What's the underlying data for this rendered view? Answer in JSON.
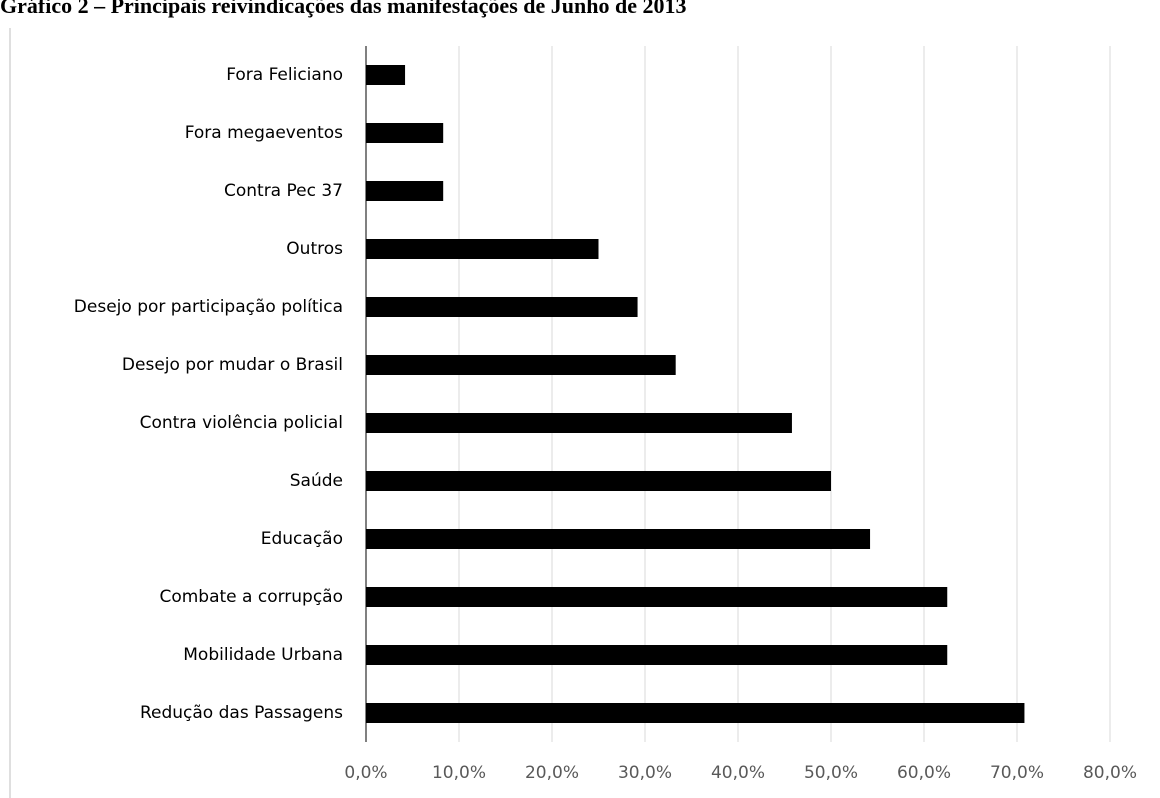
{
  "chart_data": {
    "type": "bar",
    "orientation": "horizontal",
    "title": "Gráfico 2 – Principais reivindicações das manifestações de Junho de 2013",
    "categories": [
      "Fora Feliciano",
      "Fora megaeventos",
      "Contra Pec 37",
      "Outros",
      "Desejo por participação política",
      "Desejo por mudar o Brasil",
      "Contra violência policial",
      "Saúde",
      "Educação",
      "Combate a corrupção",
      "Mobilidade Urbana",
      "Redução das Passagens"
    ],
    "values": [
      4.2,
      8.3,
      8.3,
      25.0,
      29.2,
      33.3,
      45.8,
      50.0,
      54.2,
      62.5,
      62.5,
      70.8
    ],
    "color": "#000000",
    "xlim": [
      0,
      80
    ],
    "xticks": [
      {
        "value": 0,
        "label": "0,0%"
      },
      {
        "value": 10,
        "label": "10,0%"
      },
      {
        "value": 20,
        "label": "20,0%"
      },
      {
        "value": 30,
        "label": "30,0%"
      },
      {
        "value": 40,
        "label": "40,0%"
      },
      {
        "value": 50,
        "label": "50,0%"
      },
      {
        "value": 60,
        "label": "60,0%"
      },
      {
        "value": 70,
        "label": "70,0%"
      },
      {
        "value": 80,
        "label": "80,0%"
      }
    ],
    "grid": true
  }
}
